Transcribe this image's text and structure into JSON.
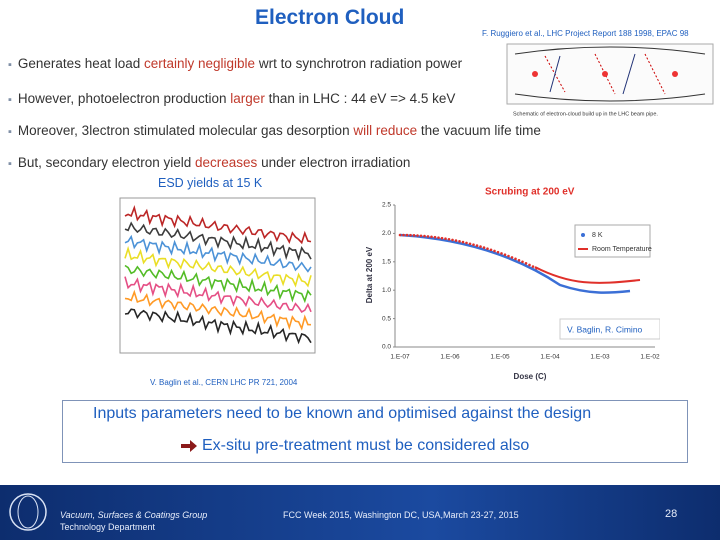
{
  "header": {
    "title": "Electron Cloud",
    "reference": "F. Ruggiero et al., LHC Project Report 188 1998, EPAC 98"
  },
  "figure_top": {
    "caption": "Schematic of electron-cloud build up in the LHC beam pipe."
  },
  "bullets": [
    [
      {
        "text": "Generates heat load "
      },
      {
        "text": "certainly negligible",
        "emphasis": true
      },
      {
        "text": " wrt to synchrotron radiation power"
      }
    ],
    [
      {
        "text": "However, photoelectron production "
      },
      {
        "text": "larger",
        "emphasis": true
      },
      {
        "text": " than in LHC : 44 eV => 4.5 keV"
      }
    ],
    [
      {
        "text": "Moreover, 3lectron stimulated molecular gas desorption "
      },
      {
        "text": "will reduce",
        "emphasis": true
      },
      {
        "text": " the vacuum life time"
      }
    ],
    [
      {
        "text": "But, secondary electron yield "
      },
      {
        "text": "decreases",
        "emphasis": true
      },
      {
        "text": " under electron irradiation"
      }
    ]
  ],
  "esd_figure": {
    "caption": "ESD yields at 15 K",
    "source": "V. Baglin et al., CERN LHC PR 721, 2004"
  },
  "scrubbing_figure": {
    "title": "Scrubing at 200 eV",
    "y_label": "Delta at 200 eV",
    "x_label": "Dose (C)",
    "yticks": [
      "0.0",
      "0.5",
      "1.0",
      "1.5",
      "2.0",
      "2.5"
    ],
    "xticks": [
      "1.E-07",
      "1.E-06",
      "1.E-05",
      "1.E-04",
      "1.E-03",
      "1.E-02"
    ],
    "legend": [
      "8 K",
      "Room Temperature"
    ],
    "credit": "V. Baglin, R. Cimino"
  },
  "conclusion": {
    "line1": "Inputs parameters need to be known and optimised against the design",
    "line2": "Ex-situ pre-treatment must be considered also"
  },
  "footer": {
    "group": "Vacuum, Surfaces & Coatings Group",
    "department": "Technology Department",
    "event": "FCC Week 2015, Washington DC, USA,March 23-27, 2015",
    "page": "28"
  }
}
